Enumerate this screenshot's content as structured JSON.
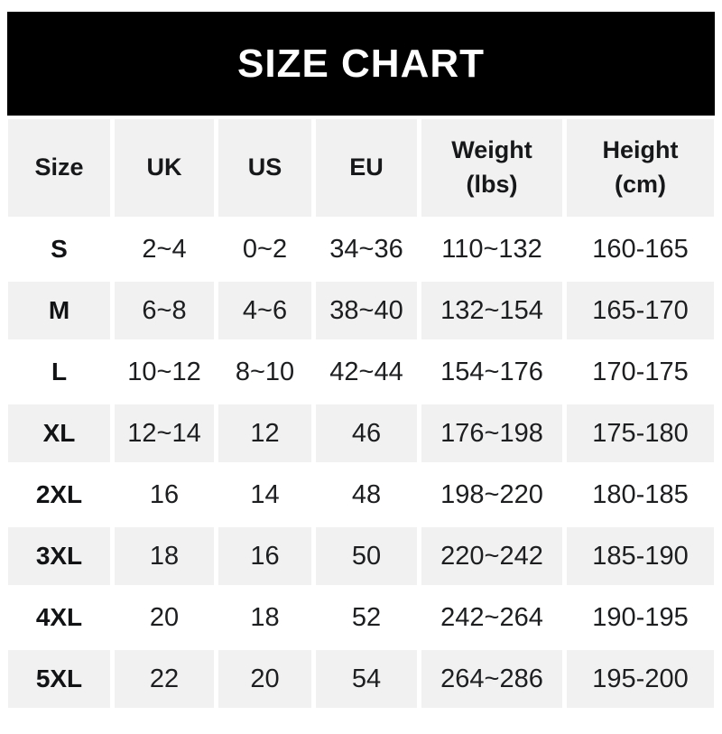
{
  "title": "SIZE CHART",
  "colors": {
    "title_bar_bg": "#000000",
    "title_text": "#ffffff",
    "row_alt_bg": "#f1f1f1",
    "row_bg": "#ffffff",
    "body_text": "#1d1e20"
  },
  "table": {
    "columns": [
      "Size",
      "UK",
      "US",
      "EU",
      "Weight\n(lbs)",
      "Height\n(cm)"
    ],
    "rows": [
      {
        "size": "S",
        "uk": "2~4",
        "us": "0~2",
        "eu": "34~36",
        "weight": "110~132",
        "height": "160-165"
      },
      {
        "size": "M",
        "uk": "6~8",
        "us": "4~6",
        "eu": "38~40",
        "weight": "132~154",
        "height": "165-170"
      },
      {
        "size": "L",
        "uk": "10~12",
        "us": "8~10",
        "eu": "42~44",
        "weight": "154~176",
        "height": "170-175"
      },
      {
        "size": "XL",
        "uk": "12~14",
        "us": "12",
        "eu": "46",
        "weight": "176~198",
        "height": "175-180"
      },
      {
        "size": "2XL",
        "uk": "16",
        "us": "14",
        "eu": "48",
        "weight": "198~220",
        "height": "180-185"
      },
      {
        "size": "3XL",
        "uk": "18",
        "us": "16",
        "eu": "50",
        "weight": "220~242",
        "height": "185-190"
      },
      {
        "size": "4XL",
        "uk": "20",
        "us": "18",
        "eu": "52",
        "weight": "242~264",
        "height": "190-195"
      },
      {
        "size": "5XL",
        "uk": "22",
        "us": "20",
        "eu": "54",
        "weight": "264~286",
        "height": "195-200"
      }
    ]
  },
  "chart_data": {
    "type": "table",
    "title": "SIZE CHART",
    "columns": [
      "Size",
      "UK",
      "US",
      "EU",
      "Weight (lbs)",
      "Height (cm)"
    ],
    "rows": [
      [
        "S",
        "2~4",
        "0~2",
        "34~36",
        "110~132",
        "160-165"
      ],
      [
        "M",
        "6~8",
        "4~6",
        "38~40",
        "132~154",
        "165-170"
      ],
      [
        "L",
        "10~12",
        "8~10",
        "42~44",
        "154~176",
        "170-175"
      ],
      [
        "XL",
        "12~14",
        "12",
        "46",
        "176~198",
        "175-180"
      ],
      [
        "2XL",
        "16",
        "14",
        "48",
        "198~220",
        "180-185"
      ],
      [
        "3XL",
        "18",
        "16",
        "50",
        "220~242",
        "185-190"
      ],
      [
        "4XL",
        "20",
        "18",
        "52",
        "242~264",
        "190-195"
      ],
      [
        "5XL",
        "22",
        "20",
        "54",
        "264~286",
        "195-200"
      ]
    ]
  }
}
